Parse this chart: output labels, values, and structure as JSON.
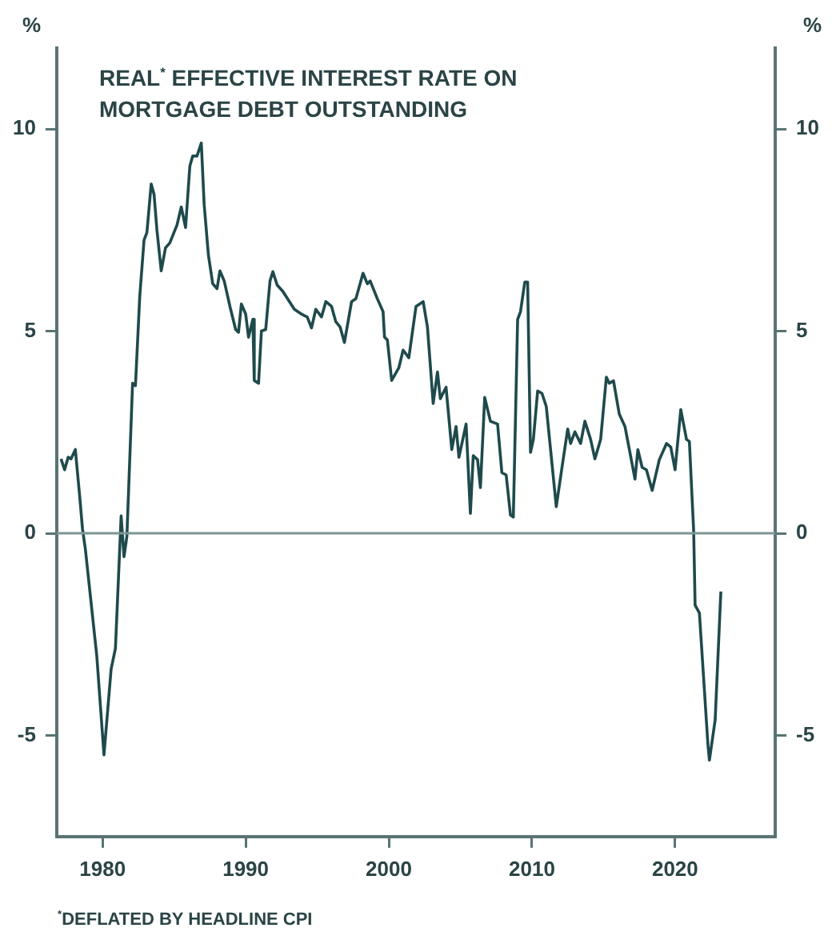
{
  "chart_data": {
    "type": "line",
    "title": "REAL$^{*}$ EFFECTIVE INTEREST RATE ON MORTGAGE DEBT OUTSTANDING",
    "ylabel": "%",
    "y2label": "%",
    "annotations": [
      "$^{*}$DEFLATED BY HEADLINE CPI"
    ],
    "x": [
      1977.1,
      1977.35,
      1977.6,
      1977.8,
      1978.1,
      1978.4,
      1978.6,
      1978.8,
      1979.6,
      1980.1,
      1980.6,
      1980.9,
      1981.3,
      1981.5,
      1981.7,
      1982.1,
      1982.3,
      1982.6,
      1982.9,
      1983.1,
      1983.4,
      1983.6,
      1983.8,
      1984.1,
      1984.4,
      1984.7,
      1985.2,
      1985.5,
      1985.8,
      1986.1,
      1986.3,
      1986.6,
      1986.9,
      1987.1,
      1987.4,
      1987.7,
      1988.0,
      1988.2,
      1988.5,
      1988.9,
      1989.3,
      1989.5,
      1989.7,
      1990.0,
      1990.2,
      1990.5,
      1990.6,
      1990.9,
      1991.1,
      1991.4,
      1991.7,
      1991.9,
      1992.2,
      1992.6,
      1993.4,
      1993.9,
      1994.3,
      1994.6,
      1994.9,
      1995.3,
      1995.6,
      1996.0,
      1996.3,
      1996.6,
      1996.9,
      1997.4,
      1997.7,
      1998.2,
      1998.5,
      1998.7,
      1999.2,
      1999.6,
      1999.7,
      1999.9,
      2000.2,
      2000.7,
      2001.0,
      2001.4,
      2001.9,
      2002.4,
      2002.7,
      2003.1,
      2003.4,
      2003.6,
      2004.0,
      2004.4,
      2004.7,
      2004.9,
      2005.4,
      2005.7,
      2005.9,
      2006.2,
      2006.4,
      2006.7,
      2007.1,
      2007.6,
      2007.9,
      2008.2,
      2008.5,
      2008.7,
      2009.0,
      2009.2,
      2009.5,
      2009.7,
      2009.9,
      2010.1,
      2010.4,
      2010.7,
      2011.0,
      2011.7,
      2012.1,
      2012.5,
      2012.7,
      2013.0,
      2013.4,
      2013.7,
      2014.1,
      2014.4,
      2014.8,
      2015.2,
      2015.4,
      2015.7,
      2016.1,
      2016.5,
      2017.2,
      2017.4,
      2017.7,
      2018.0,
      2018.4,
      2018.9,
      2019.4,
      2019.7,
      2020.0,
      2020.4,
      2020.8,
      2021.0,
      2021.3,
      2021.4,
      2021.7,
      2022.3,
      2022.4,
      2022.8,
      2023.2
    ],
    "series": [
      {
        "color": "#1f4a4c",
        "values": [
          1.84,
          1.57,
          1.88,
          1.84,
          2.07,
          0.93,
          0.11,
          -0.39,
          -3.04,
          -5.48,
          -3.36,
          -2.85,
          0.43,
          -0.58,
          -0.08,
          3.71,
          3.65,
          5.86,
          7.25,
          7.44,
          8.64,
          8.38,
          7.5,
          6.49,
          7.06,
          7.18,
          7.62,
          8.07,
          7.56,
          9.08,
          9.33,
          9.33,
          9.65,
          8.13,
          6.87,
          6.17,
          6.05,
          6.49,
          6.24,
          5.61,
          5.04,
          4.97,
          5.67,
          5.42,
          4.85,
          5.29,
          3.78,
          3.71,
          5.0,
          5.04,
          6.24,
          6.47,
          6.14,
          5.98,
          5.54,
          5.42,
          5.35,
          5.08,
          5.54,
          5.35,
          5.73,
          5.61,
          5.23,
          5.1,
          4.72,
          5.73,
          5.8,
          6.43,
          6.17,
          6.24,
          5.8,
          5.48,
          4.85,
          4.78,
          3.78,
          4.09,
          4.53,
          4.34,
          5.61,
          5.73,
          5.1,
          3.21,
          3.99,
          3.33,
          3.61,
          2.07,
          2.64,
          1.88,
          2.7,
          0.49,
          1.92,
          1.82,
          1.13,
          3.36,
          2.77,
          2.7,
          1.5,
          1.44,
          0.45,
          0.4,
          5.29,
          5.48,
          6.21,
          6.21,
          2.0,
          2.32,
          3.52,
          3.46,
          3.14,
          0.66,
          1.63,
          2.58,
          2.22,
          2.51,
          2.22,
          2.77,
          2.32,
          1.84,
          2.32,
          3.86,
          3.71,
          3.77,
          2.95,
          2.64,
          1.34,
          2.07,
          1.63,
          1.57,
          1.06,
          1.82,
          2.22,
          2.13,
          1.57,
          3.06,
          2.32,
          2.27,
          0.05,
          -1.78,
          -1.97,
          -5.25,
          -5.61,
          -4.62,
          -1.44
        ]
      }
    ],
    "xlim": [
      1976.8,
      2027
    ],
    "xticks": [
      1980,
      1990,
      2000,
      2010,
      2020
    ],
    "ylim": [
      -7.5,
      12
    ],
    "yticks": [
      -5,
      0,
      5,
      10
    ],
    "y2lim": [
      -7.5,
      12
    ],
    "y2ticks": [
      -5,
      0,
      5,
      10
    ],
    "ref_lines": [
      {
        "axis": "y",
        "value": 0,
        "color": "#7d9696"
      }
    ],
    "grid": false,
    "legend": false,
    "marker": "none",
    "line_style": "solid"
  }
}
